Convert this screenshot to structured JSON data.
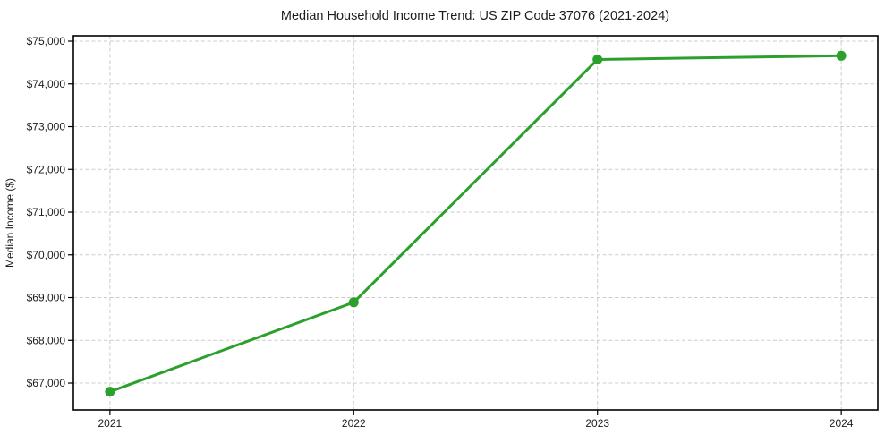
{
  "chart_data": {
    "type": "line",
    "title": "Median Household Income Trend: US ZIP Code 37076 (2021-2024)",
    "ylabel": "Median Income ($)",
    "x": [
      2021,
      2022,
      2023,
      2024
    ],
    "x_tick_labels": [
      "2021",
      "2022",
      "2023",
      "2024"
    ],
    "series": [
      {
        "name": "Median household income",
        "values": [
          66800,
          68890,
          74570,
          74660
        ],
        "color": "#2ca02c",
        "marker": "circle"
      }
    ],
    "xlim": [
      2020.85,
      2024.15
    ],
    "ylim": [
      66372,
      75126
    ],
    "yticks": [
      67000,
      68000,
      69000,
      70000,
      71000,
      72000,
      73000,
      74000,
      75000
    ],
    "y_tick_labels": [
      "$67,000",
      "$68,000",
      "$69,000",
      "$70,000",
      "$71,000",
      "$72,000",
      "$73,000",
      "$74,000",
      "$75,000"
    ],
    "grid": "dashed",
    "grid_color": "#cccccc",
    "spine_color": "#000000",
    "background": "#ffffff",
    "legend": "none"
  }
}
